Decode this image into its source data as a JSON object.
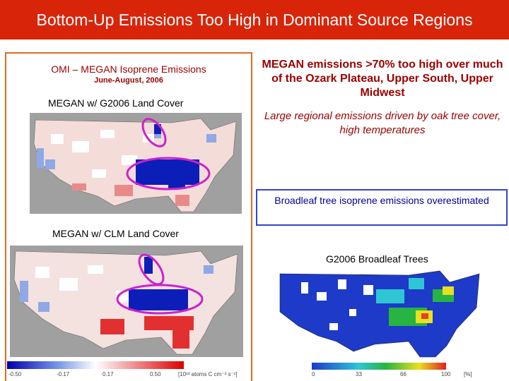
{
  "slide": {
    "title": "Bottom-Up Emissions Too High in Dominant Source Regions"
  },
  "left_panel": {
    "heading": "OMI – MEGAN Isoprene Emissions",
    "subheading": "June-August, 2006",
    "map1_label": "MEGAN w/ G2006 Land Cover",
    "map2_label": "MEGAN w/ CLM Land Cover",
    "colorbar_ticks": [
      "-0.50",
      "-0.17",
      "0.17",
      "0.50"
    ],
    "colorbar_units": "[10¹³ atoms C cm⁻² s⁻¹]"
  },
  "right_panel": {
    "heading": "MEGAN emissions >70% too high over much of the Ozark Plateau, Upper South, Upper Midwest",
    "italic_text": "Large regional emissions driven by oak tree cover, high temperatures",
    "callout": "Broadleaf tree isoprene emissions overestimated",
    "broadleaf_label": "G2006 Broadleaf Trees",
    "broadleaf_ticks": [
      "0",
      "33",
      "66",
      "100"
    ],
    "broadleaf_units": "[%]"
  },
  "colors": {
    "title_bar": "#d8250a",
    "heading_text": "#990000",
    "callout_border": "#3344cc",
    "highlight_ellipse": "#cc22cc",
    "diverging_low": "#0000aa",
    "diverging_high": "#dd0000"
  },
  "icons": {
    "maps": "us-map-image",
    "highlight": "ellipse-highlight"
  }
}
